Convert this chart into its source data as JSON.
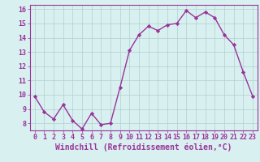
{
  "x": [
    0,
    1,
    2,
    3,
    4,
    5,
    6,
    7,
    8,
    9,
    10,
    11,
    12,
    13,
    14,
    15,
    16,
    17,
    18,
    19,
    20,
    21,
    22,
    23
  ],
  "y": [
    9.9,
    8.8,
    8.3,
    9.3,
    8.2,
    7.6,
    8.7,
    7.9,
    8.0,
    10.5,
    13.1,
    14.2,
    14.8,
    14.5,
    14.9,
    15.0,
    15.9,
    15.4,
    15.8,
    15.4,
    14.2,
    13.5,
    11.6,
    9.9
  ],
  "line_color": "#993399",
  "marker": "D",
  "marker_size": 2.2,
  "bg_color": "#d9f0f0",
  "grid_color": "#b0d0d0",
  "xlabel": "Windchill (Refroidissement éolien,°C)",
  "xlabel_color": "#993399",
  "tick_color": "#993399",
  "ylim": [
    7.5,
    16.3
  ],
  "xlim": [
    -0.5,
    23.5
  ],
  "yticks": [
    8,
    9,
    10,
    11,
    12,
    13,
    14,
    15,
    16
  ],
  "xticks": [
    0,
    1,
    2,
    3,
    4,
    5,
    6,
    7,
    8,
    9,
    10,
    11,
    12,
    13,
    14,
    15,
    16,
    17,
    18,
    19,
    20,
    21,
    22,
    23
  ],
  "tick_fontsize": 6.0,
  "xlabel_fontsize": 7.0,
  "spine_color": "#993399",
  "line_width": 1.0
}
